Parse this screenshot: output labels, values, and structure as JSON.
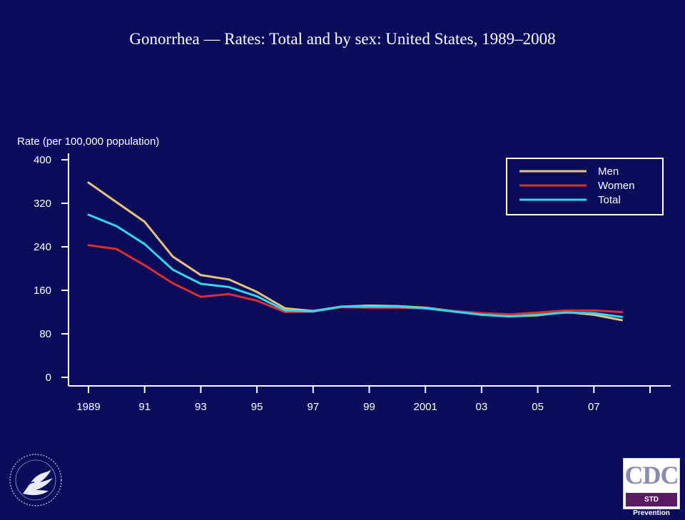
{
  "title": "Gonorrhea — Rates: Total and by sex: United States, 1989–2008",
  "colors": {
    "background": "#0b0b5c",
    "axis": "#ffffff",
    "men": "#e6c27a",
    "women": "#d9302a",
    "total": "#2fd8ee"
  },
  "chart_data": {
    "type": "line",
    "ylabel": "Rate (per 100,000 population)",
    "xlabel": "",
    "x": [
      1989,
      1990,
      1991,
      1992,
      1993,
      1994,
      1995,
      1996,
      1997,
      1998,
      1999,
      2000,
      2001,
      2002,
      2003,
      2004,
      2005,
      2006,
      2007,
      2008
    ],
    "xlim": [
      1989,
      2009
    ],
    "ylim": [
      0,
      400
    ],
    "yticks": [
      0,
      80,
      160,
      240,
      320,
      400
    ],
    "xticks": [
      {
        "value": 1989,
        "label": "1989"
      },
      {
        "value": 1991,
        "label": "91"
      },
      {
        "value": 1993,
        "label": "93"
      },
      {
        "value": 1995,
        "label": "95"
      },
      {
        "value": 1997,
        "label": "97"
      },
      {
        "value": 1999,
        "label": "99"
      },
      {
        "value": 2001,
        "label": "2001"
      },
      {
        "value": 2003,
        "label": "03"
      },
      {
        "value": 2005,
        "label": "05"
      },
      {
        "value": 2007,
        "label": "07"
      }
    ],
    "grid": false,
    "legend_position": "top-right",
    "series": [
      {
        "name": "Men",
        "color": "#e6c27a",
        "values": [
          358,
          322,
          286,
          222,
          188,
          180,
          157,
          127,
          122,
          130,
          132,
          131,
          128,
          122,
          115,
          112,
          114,
          120,
          115,
          105
        ]
      },
      {
        "name": "Women",
        "color": "#d9302a",
        "values": [
          243,
          236,
          206,
          173,
          148,
          153,
          141,
          120,
          121,
          129,
          128,
          128,
          127,
          122,
          118,
          116,
          119,
          123,
          123,
          120
        ]
      },
      {
        "name": "Total",
        "color": "#2fd8ee",
        "values": [
          299,
          278,
          245,
          198,
          172,
          166,
          149,
          123,
          121,
          130,
          130,
          130,
          127,
          121,
          115,
          112,
          115,
          119,
          118,
          111
        ]
      }
    ]
  },
  "logos": {
    "cdc_text": "CDC",
    "cdc_subtitle": "STD Prevention"
  }
}
